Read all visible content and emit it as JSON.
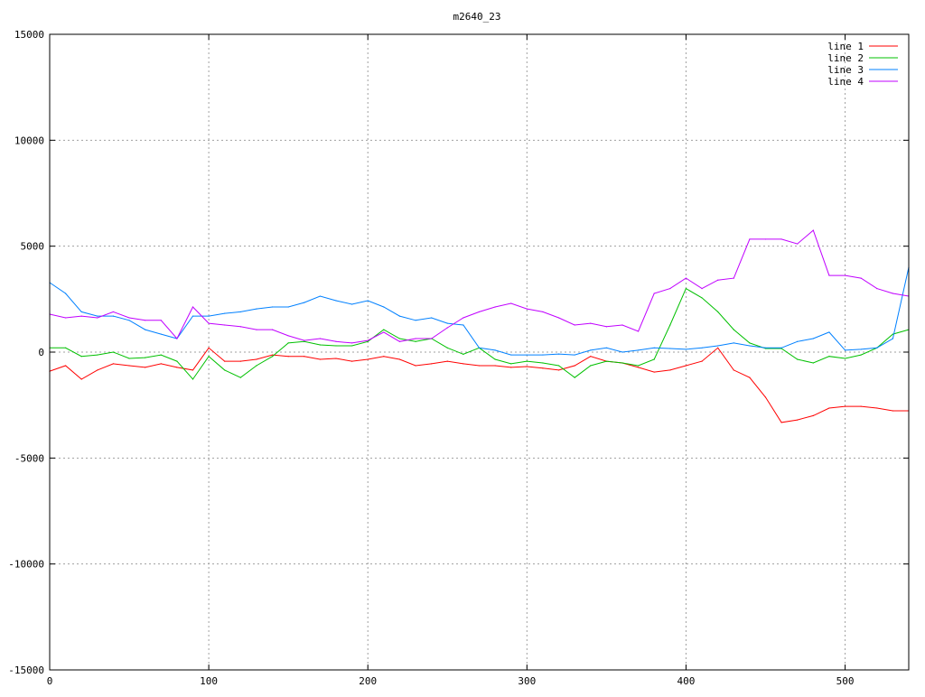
{
  "chart_data": {
    "type": "line",
    "title": "m2640_23",
    "xlabel": "",
    "ylabel": "",
    "xlim": [
      0,
      540
    ],
    "ylim": [
      -15000,
      15000
    ],
    "xticks": [
      0,
      100,
      200,
      300,
      400,
      500
    ],
    "yticks": [
      -15000,
      -10000,
      -5000,
      0,
      5000,
      10000,
      15000
    ],
    "grid": true,
    "legend": "top-right",
    "x": [
      0,
      10,
      20,
      30,
      40,
      50,
      60,
      70,
      80,
      90,
      100,
      110,
      120,
      130,
      140,
      150,
      160,
      170,
      180,
      190,
      200,
      210,
      220,
      230,
      240,
      250,
      260,
      270,
      280,
      290,
      300,
      310,
      320,
      330,
      340,
      350,
      360,
      370,
      380,
      390,
      400,
      410,
      420,
      430,
      440,
      450,
      460,
      470,
      480,
      490,
      500,
      510,
      520,
      530,
      540
    ],
    "series": [
      {
        "name": "line 1",
        "color": "#ff0000",
        "values": [
          -900,
          -640,
          -1280,
          -850,
          -550,
          -640,
          -720,
          -550,
          -720,
          -850,
          200,
          -430,
          -430,
          -340,
          -130,
          -200,
          -200,
          -340,
          -300,
          -430,
          -340,
          -200,
          -340,
          -640,
          -550,
          -430,
          -550,
          -640,
          -640,
          -720,
          -680,
          -760,
          -850,
          -640,
          -200,
          -430,
          -510,
          -720,
          -940,
          -850,
          -640,
          -430,
          200,
          -850,
          -1200,
          -2130,
          -3320,
          -3200,
          -3000,
          -2640,
          -2560,
          -2560,
          -2640,
          -2770,
          -2770
        ]
      },
      {
        "name": "line 2",
        "color": "#00c000",
        "values": [
          200,
          200,
          -200,
          -130,
          0,
          -300,
          -260,
          -130,
          -430,
          -1280,
          -200,
          -850,
          -1200,
          -640,
          -200,
          430,
          500,
          340,
          300,
          300,
          500,
          1060,
          640,
          500,
          640,
          200,
          -100,
          200,
          -340,
          -550,
          -430,
          -510,
          -640,
          -1200,
          -640,
          -430,
          -510,
          -640,
          -340,
          1280,
          3000,
          2560,
          1900,
          1060,
          430,
          170,
          170,
          -340,
          -510,
          -200,
          -300,
          -130,
          200,
          850,
          1060
        ]
      },
      {
        "name": "line 3",
        "color": "#0080ff",
        "values": [
          3280,
          2770,
          1900,
          1700,
          1700,
          1500,
          1060,
          850,
          640,
          1700,
          1700,
          1830,
          1900,
          2040,
          2130,
          2130,
          2340,
          2640,
          2430,
          2260,
          2430,
          2130,
          1700,
          1500,
          1620,
          1360,
          1280,
          200,
          90,
          -130,
          -130,
          -130,
          -90,
          -130,
          90,
          200,
          0,
          90,
          200,
          170,
          130,
          200,
          300,
          430,
          300,
          200,
          200,
          500,
          640,
          940,
          90,
          130,
          200,
          640,
          4000
        ]
      },
      {
        "name": "line 4",
        "color": "#c000ff",
        "values": [
          1790,
          1620,
          1700,
          1620,
          1900,
          1620,
          1500,
          1500,
          640,
          2130,
          1360,
          1280,
          1200,
          1060,
          1060,
          770,
          550,
          640,
          500,
          430,
          550,
          940,
          500,
          640,
          640,
          1150,
          1620,
          1900,
          2130,
          2300,
          2040,
          1900,
          1620,
          1280,
          1360,
          1200,
          1280,
          980,
          2770,
          3000,
          3490,
          3000,
          3400,
          3490,
          5330,
          5330,
          5330,
          5110,
          5750,
          3620,
          3620,
          3490,
          3000,
          2770,
          2640
        ]
      }
    ]
  }
}
